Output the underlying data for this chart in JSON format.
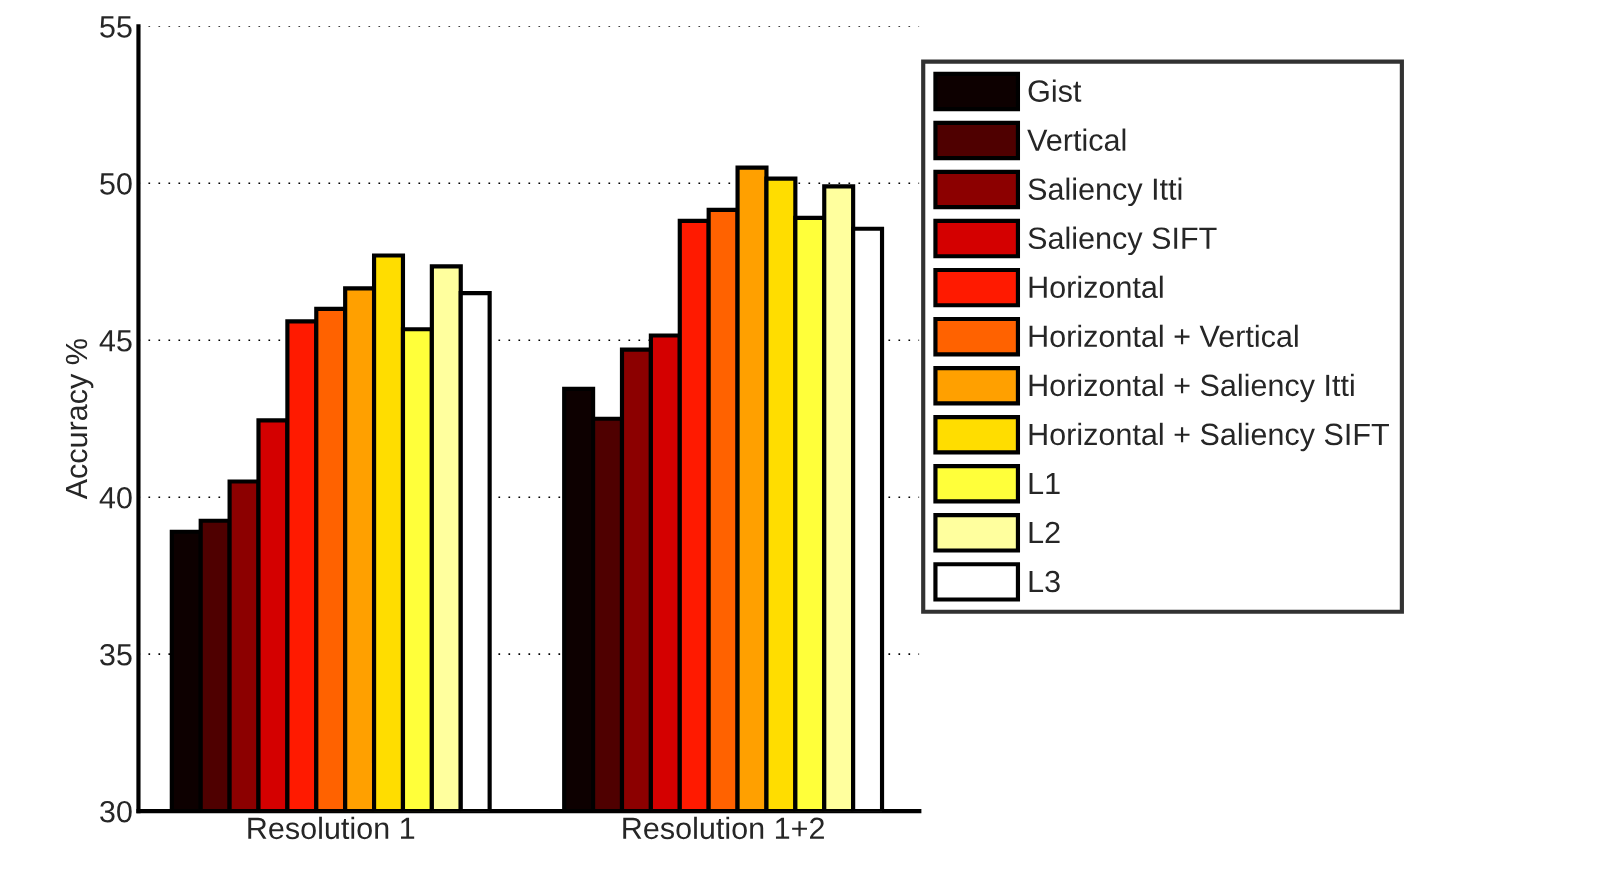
{
  "chart_data": {
    "type": "bar",
    "ylabel": "Accuracy %",
    "categories": [
      "Resolution 1",
      "Resolution 1+2"
    ],
    "ylim": [
      30,
      55
    ],
    "yticks": [
      30,
      35,
      40,
      45,
      50,
      55
    ],
    "grid": "y",
    "legend": "right",
    "series": [
      {
        "name": "Gist",
        "color": "#0d0000",
        "values": [
          38.9,
          43.45
        ]
      },
      {
        "name": "Vertical",
        "color": "#4f0000",
        "values": [
          39.25,
          42.5
        ]
      },
      {
        "name": "Saliency Itti",
        "color": "#8c0000",
        "values": [
          40.5,
          44.7
        ]
      },
      {
        "name": "Saliency SIFT",
        "color": "#d40000",
        "values": [
          42.45,
          45.15
        ]
      },
      {
        "name": "Horizontal",
        "color": "#ff1a00",
        "values": [
          45.6,
          48.8
        ]
      },
      {
        "name": "Horizontal + Vertical",
        "color": "#ff6200",
        "values": [
          46.0,
          49.15
        ]
      },
      {
        "name": "Horizontal + Saliency Itti",
        "color": "#ffa000",
        "values": [
          46.65,
          50.5
        ]
      },
      {
        "name": "Horizontal + Saliency SIFT",
        "color": "#ffdd00",
        "values": [
          47.7,
          50.15
        ]
      },
      {
        "name": "L1",
        "color": "#ffff3a",
        "values": [
          45.35,
          48.9
        ]
      },
      {
        "name": "L2",
        "color": "#ffff9e",
        "values": [
          47.35,
          49.9
        ]
      },
      {
        "name": "L3",
        "color": "#ffffff",
        "values": [
          46.5,
          48.55
        ]
      }
    ]
  }
}
